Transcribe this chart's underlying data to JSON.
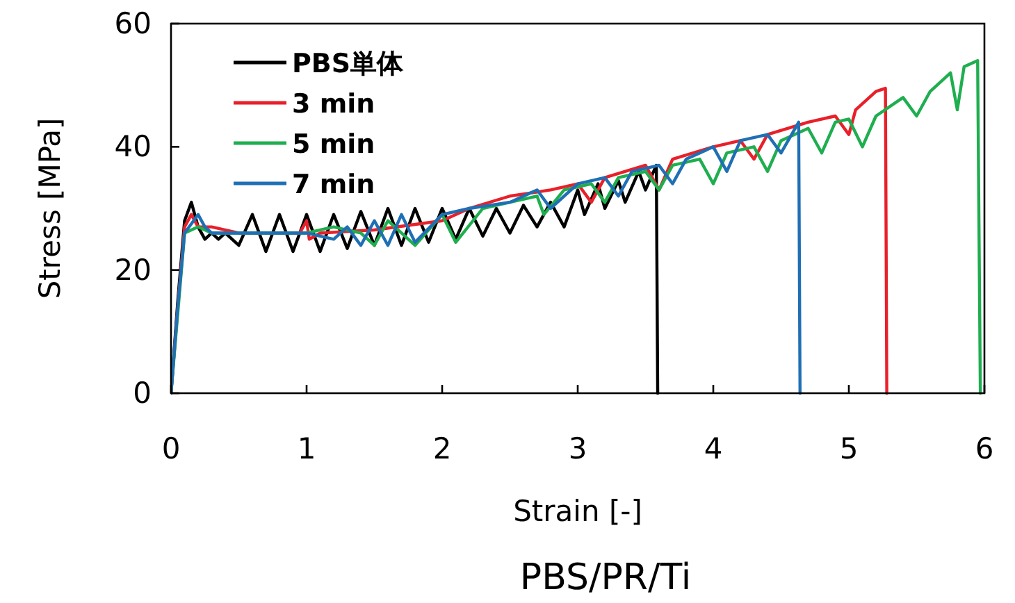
{
  "chart_data": {
    "type": "line",
    "title": "PBS/PR/Ti",
    "xlabel": "Strain [-]",
    "ylabel": "Stress [MPa]",
    "xlim": [
      0,
      6
    ],
    "ylim": [
      0,
      60
    ],
    "xticks": [
      0,
      1,
      2,
      3,
      4,
      5,
      6
    ],
    "yticks": [
      0,
      20,
      40,
      60
    ],
    "legend": "top left",
    "series": [
      {
        "name": "PBS単体",
        "color": "#000000",
        "x": [
          0,
          0.05,
          0.1,
          0.15,
          0.2,
          0.25,
          0.3,
          0.35,
          0.4,
          0.5,
          0.6,
          0.7,
          0.8,
          0.9,
          1.0,
          1.1,
          1.2,
          1.3,
          1.4,
          1.5,
          1.6,
          1.7,
          1.8,
          1.9,
          2.0,
          2.1,
          2.2,
          2.3,
          2.4,
          2.5,
          2.6,
          2.7,
          2.8,
          2.9,
          3.0,
          3.05,
          3.15,
          3.2,
          3.3,
          3.35,
          3.45,
          3.5,
          3.58,
          3.59
        ],
        "values": [
          0,
          15,
          28,
          31,
          27,
          25,
          26,
          25,
          26,
          24,
          29,
          23,
          29,
          23,
          29,
          23,
          29,
          23.5,
          29.5,
          24,
          30,
          24,
          30,
          24.5,
          30,
          25,
          30,
          25.5,
          30,
          26,
          30.5,
          27,
          31,
          27,
          33,
          29,
          34,
          30,
          34.5,
          31,
          36,
          33,
          37,
          0
        ]
      },
      {
        "name": "3 min",
        "color": "#e8202a",
        "x": [
          0,
          0.05,
          0.1,
          0.15,
          0.2,
          0.3,
          0.5,
          0.8,
          0.95,
          1.0,
          1.02,
          1.1,
          1.5,
          2.0,
          2.2,
          2.5,
          2.8,
          3.0,
          3.1,
          3.2,
          3.5,
          3.6,
          3.7,
          4.0,
          4.2,
          4.3,
          4.4,
          4.7,
          4.9,
          5.0,
          5.05,
          5.2,
          5.27,
          5.28
        ],
        "values": [
          0,
          14,
          27,
          29,
          27,
          27,
          26,
          26,
          26,
          28,
          25,
          26,
          26.5,
          28,
          30,
          32,
          33,
          34,
          31,
          35,
          37,
          33,
          38,
          40,
          41,
          38,
          42,
          44,
          45,
          42,
          46,
          49,
          49.5,
          0
        ]
      },
      {
        "name": "5 min",
        "color": "#1fae4f",
        "x": [
          0,
          0.05,
          0.1,
          0.2,
          0.3,
          0.6,
          1.0,
          1.2,
          1.4,
          1.5,
          1.6,
          1.8,
          2.0,
          2.1,
          2.3,
          2.5,
          2.7,
          2.75,
          2.9,
          3.1,
          3.2,
          3.3,
          3.5,
          3.6,
          3.7,
          3.9,
          4.0,
          4.1,
          4.3,
          4.4,
          4.5,
          4.7,
          4.8,
          4.9,
          5.0,
          5.1,
          5.2,
          5.4,
          5.5,
          5.6,
          5.75,
          5.8,
          5.85,
          5.95,
          5.97
        ],
        "values": [
          0,
          13,
          26,
          27,
          26,
          26,
          26,
          27,
          26,
          24,
          28,
          24,
          29,
          24.5,
          30,
          31,
          32,
          29,
          33,
          34,
          31,
          35,
          36,
          33,
          37,
          38,
          34,
          39,
          40,
          36,
          41,
          43,
          39,
          44,
          44.5,
          40,
          45,
          48,
          45,
          49,
          52,
          46,
          53,
          54,
          0
        ]
      },
      {
        "name": "7 min",
        "color": "#1f6fb4",
        "x": [
          0,
          0.05,
          0.1,
          0.2,
          0.25,
          0.3,
          0.5,
          1.0,
          1.2,
          1.3,
          1.4,
          1.5,
          1.6,
          1.7,
          1.8,
          2.0,
          2.2,
          2.5,
          2.7,
          2.8,
          3.0,
          3.2,
          3.3,
          3.4,
          3.6,
          3.7,
          3.8,
          4.0,
          4.1,
          4.2,
          4.4,
          4.5,
          4.63,
          4.64
        ],
        "values": [
          0,
          14,
          26,
          29,
          27,
          26,
          26,
          26,
          25,
          27,
          24,
          28,
          24,
          29,
          24.5,
          29,
          30,
          31,
          33,
          30,
          34,
          35,
          32,
          36,
          37,
          34,
          38,
          40,
          36,
          41,
          42,
          39,
          44,
          0
        ]
      }
    ]
  }
}
